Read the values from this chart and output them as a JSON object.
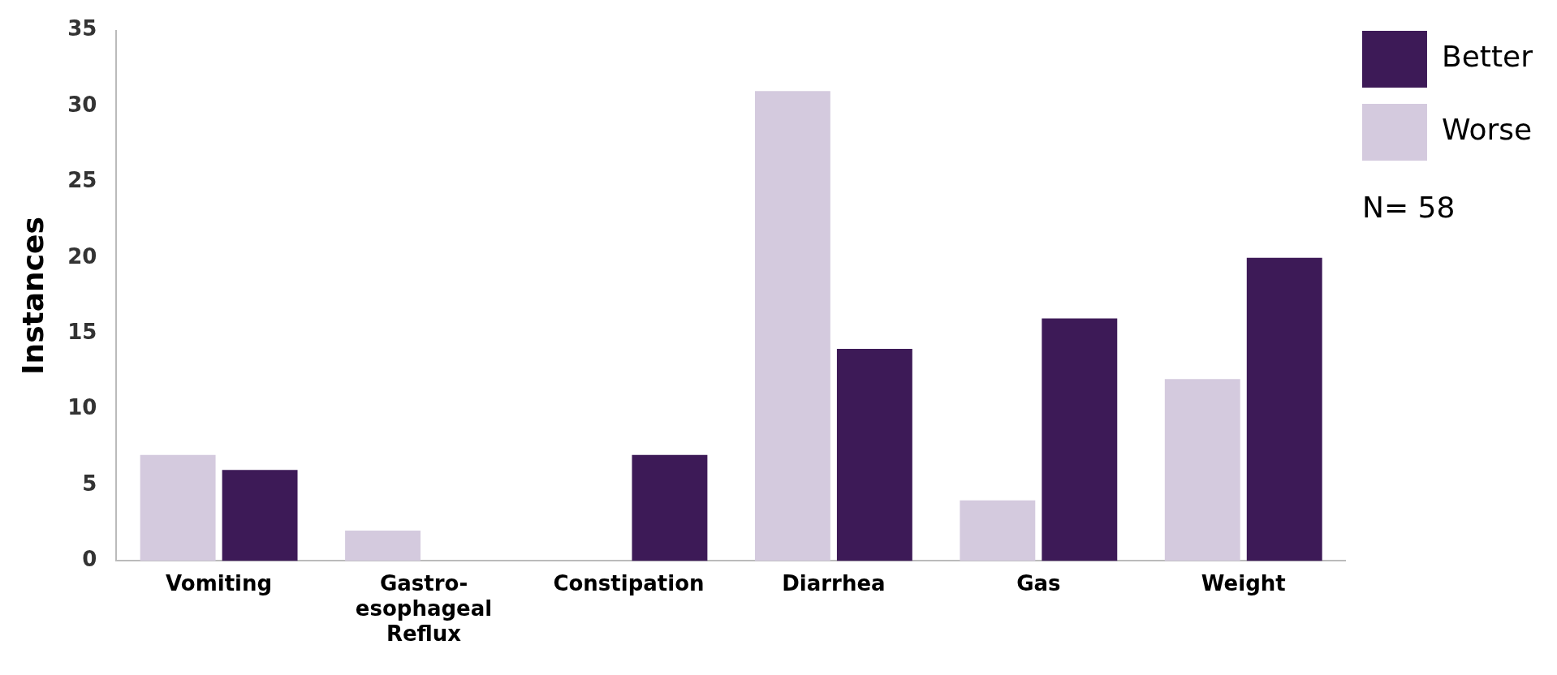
{
  "chart_data": {
    "type": "bar",
    "ylabel": "Instances",
    "categories": [
      "Vomiting",
      "Gastro-esophageal Reflux",
      "Constipation",
      "Diarrhea",
      "Gas",
      "Weight"
    ],
    "series": [
      {
        "name": "Worse",
        "color": "#d4cade",
        "values": [
          7,
          2,
          0,
          31,
          4,
          12
        ]
      },
      {
        "name": "Better",
        "color": "#3d1a57",
        "values": [
          6,
          0,
          7,
          14,
          16,
          20
        ]
      }
    ],
    "ylim": [
      0,
      35
    ],
    "yticks": [
      0,
      5,
      10,
      15,
      20,
      25,
      30,
      35
    ],
    "grid": false,
    "legend": "top right",
    "annotations": [
      "N= 58"
    ]
  }
}
